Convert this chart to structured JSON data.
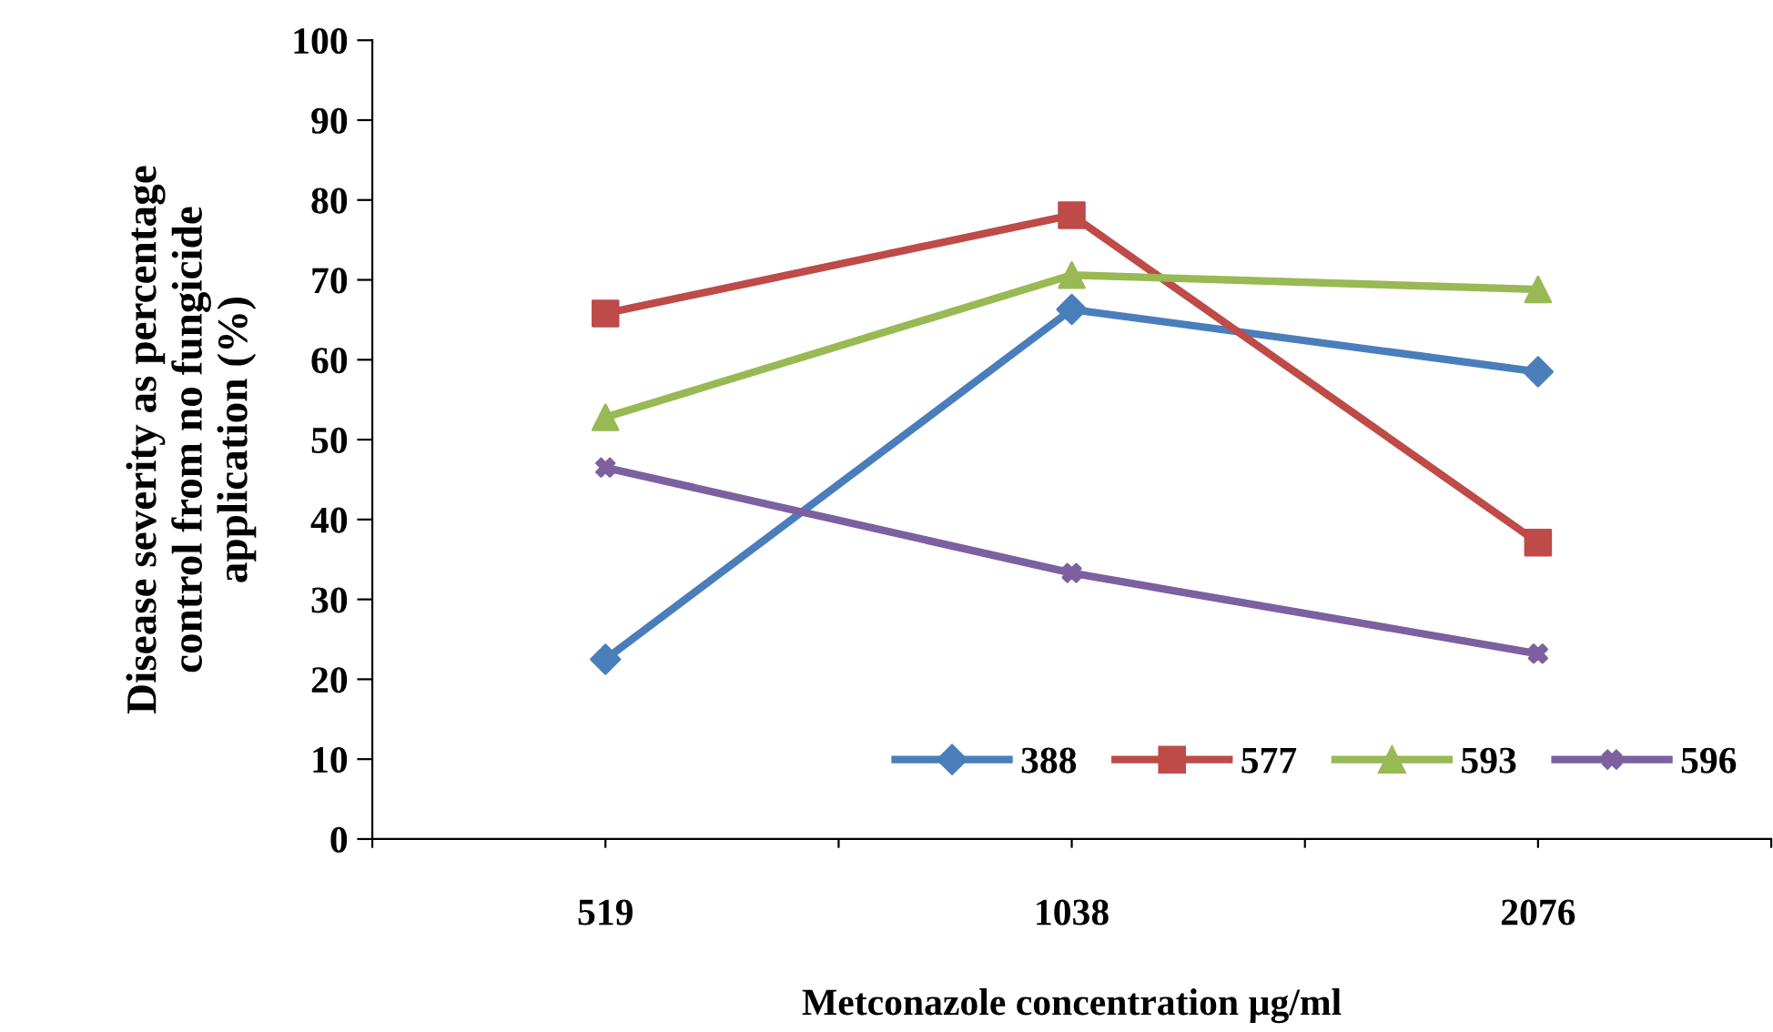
{
  "chart_data": {
    "type": "line",
    "xlabel": "Metconazole concentration µg/ml",
    "ylabel": "Disease severity as percentage\ncontrol from no fungicide\napplication (%)",
    "x": [
      519,
      1038,
      2076
    ],
    "log": "x",
    "xlim": [
      367,
      2936
    ],
    "xticks": [
      519,
      1038,
      2076,
      {
        "value": 367,
        "label": null
      },
      {
        "value": 734,
        "label": null
      },
      {
        "value": 1468,
        "label": null
      },
      {
        "value": 2936,
        "label": null
      }
    ],
    "series": [
      {
        "name": "388",
        "color": "#4a7ebb",
        "marker": "diamond",
        "values": [
          22.5,
          66.3,
          58.5
        ]
      },
      {
        "name": "577",
        "color": "#be4b48",
        "marker": "square",
        "values": [
          65.8,
          78.1,
          37.1
        ]
      },
      {
        "name": "593",
        "color": "#98b954",
        "marker": "triangle",
        "values": [
          52.8,
          70.6,
          68.8
        ]
      },
      {
        "name": "596",
        "color": "#7d60a0",
        "marker": "cross",
        "values": [
          46.5,
          33.3,
          23.2
        ]
      }
    ],
    "ylim": [
      0,
      100
    ],
    "yticks": [
      0,
      10,
      20,
      30,
      40,
      50,
      60,
      70,
      80,
      90,
      100
    ],
    "grid": false,
    "legend": "bottom right",
    "line_style": "solid"
  }
}
